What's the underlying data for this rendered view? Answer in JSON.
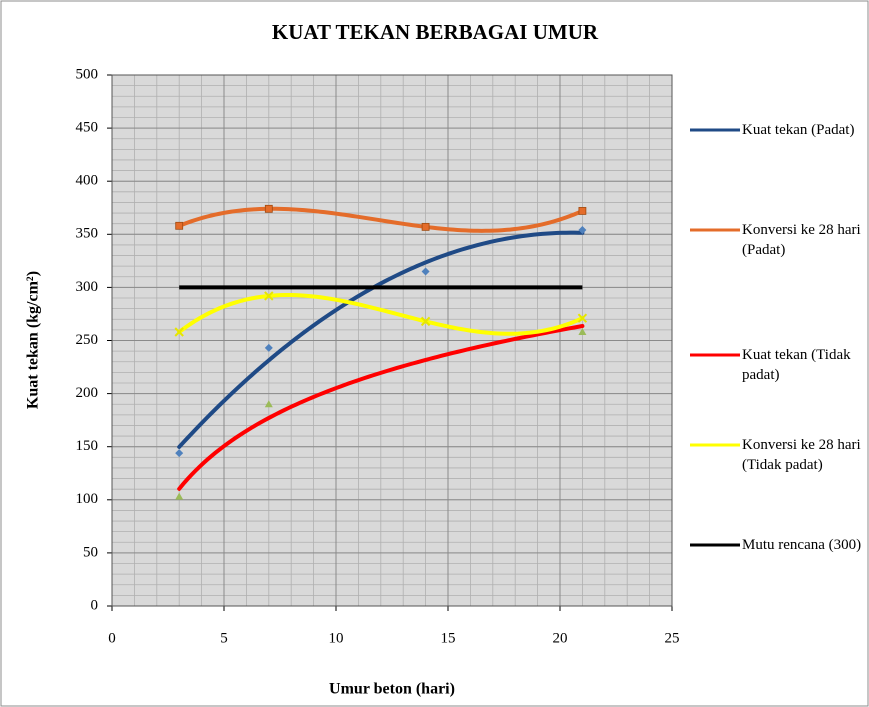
{
  "chart_data": {
    "type": "scatter",
    "title": "KUAT TEKAN BERBAGAI UMUR",
    "x_label": "Umur beton (hari)",
    "y_label": "Kuat tekan (kg/cm²)",
    "xlim": [
      0,
      25
    ],
    "xticks": [
      0,
      5,
      10,
      15,
      20,
      25
    ],
    "ylim": [
      0,
      500
    ],
    "yticks": [
      0,
      50,
      100,
      150,
      200,
      250,
      300,
      350,
      400,
      450,
      500
    ],
    "grid": true,
    "minor_grid": {
      "x": 1,
      "y": 10
    },
    "legend": "right",
    "series": [
      {
        "name": "Kuat tekan (Padat)",
        "color": "#1f4a86",
        "marker_color": "#4f81bd",
        "marker": "diamond",
        "trendline": "poly2",
        "x": [
          3,
          7,
          14,
          21
        ],
        "values": [
          144,
          243,
          315,
          354
        ]
      },
      {
        "name": "Konversi ke 28 hari (Padat)",
        "color": "#e46c2a",
        "marker_color": "#e46c2a",
        "marker": "square",
        "trendline": "poly3",
        "x": [
          3,
          7,
          14,
          21
        ],
        "values": [
          358,
          374,
          357,
          372
        ]
      },
      {
        "name": "Kuat tekan (Tidak padat)",
        "color": "#ff0000",
        "marker_color": "#9bbb59",
        "marker": "triangle",
        "trendline": "log",
        "x": [
          3,
          7,
          21
        ],
        "values": [
          103,
          190,
          258
        ]
      },
      {
        "name": "Konversi ke 28 hari (Tidak padat)",
        "color": "#ffff00",
        "marker_color": "#e6e600",
        "marker": "cross",
        "trendline": "poly3",
        "x": [
          3,
          7,
          14,
          21
        ],
        "values": [
          258,
          292,
          268,
          271
        ]
      },
      {
        "name": "Mutu rencana (300)",
        "color": "#000000",
        "marker": "none",
        "trendline": "none",
        "x": [
          3,
          21
        ],
        "values": [
          300,
          300
        ]
      }
    ]
  }
}
